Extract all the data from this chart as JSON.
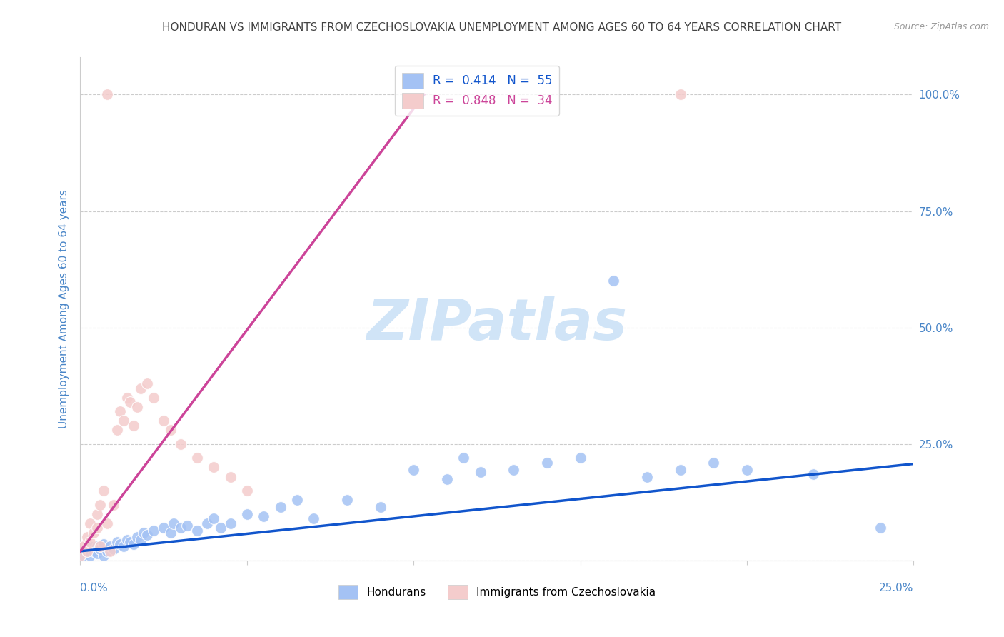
{
  "title": "HONDURAN VS IMMIGRANTS FROM CZECHOSLOVAKIA UNEMPLOYMENT AMONG AGES 60 TO 64 YEARS CORRELATION CHART",
  "source": "Source: ZipAtlas.com",
  "ylabel": "Unemployment Among Ages 60 to 64 years",
  "ytick_labels": [
    "",
    "25.0%",
    "50.0%",
    "75.0%",
    "100.0%"
  ],
  "ytick_values": [
    0,
    0.25,
    0.5,
    0.75,
    1.0
  ],
  "xrange": [
    0.0,
    0.25
  ],
  "yrange": [
    0.0,
    1.08
  ],
  "R_blue": 0.414,
  "N_blue": 55,
  "R_pink": 0.848,
  "N_pink": 34,
  "blue_color": "#a4c2f4",
  "pink_color": "#f4cccc",
  "blue_line_color": "#1155cc",
  "pink_line_color": "#cc4499",
  "title_color": "#434343",
  "source_color": "#999999",
  "tick_color": "#4a86c8",
  "watermark_color": "#d0e4f7",
  "grid_color": "#cccccc",
  "blue_scatter_x": [
    0.001,
    0.002,
    0.003,
    0.003,
    0.004,
    0.005,
    0.005,
    0.006,
    0.007,
    0.007,
    0.008,
    0.009,
    0.01,
    0.011,
    0.012,
    0.013,
    0.014,
    0.015,
    0.016,
    0.017,
    0.018,
    0.019,
    0.02,
    0.022,
    0.025,
    0.027,
    0.028,
    0.03,
    0.032,
    0.035,
    0.038,
    0.04,
    0.042,
    0.045,
    0.05,
    0.055,
    0.06,
    0.065,
    0.07,
    0.08,
    0.09,
    0.1,
    0.11,
    0.115,
    0.12,
    0.13,
    0.14,
    0.15,
    0.16,
    0.17,
    0.18,
    0.19,
    0.2,
    0.22,
    0.24
  ],
  "blue_scatter_y": [
    0.01,
    0.02,
    0.01,
    0.03,
    0.02,
    0.015,
    0.03,
    0.025,
    0.01,
    0.035,
    0.02,
    0.03,
    0.025,
    0.04,
    0.035,
    0.03,
    0.045,
    0.04,
    0.035,
    0.05,
    0.045,
    0.06,
    0.055,
    0.065,
    0.07,
    0.06,
    0.08,
    0.07,
    0.075,
    0.065,
    0.08,
    0.09,
    0.07,
    0.08,
    0.1,
    0.095,
    0.115,
    0.13,
    0.09,
    0.13,
    0.115,
    0.195,
    0.175,
    0.22,
    0.19,
    0.195,
    0.21,
    0.22,
    0.6,
    0.18,
    0.195,
    0.21,
    0.195,
    0.185,
    0.07
  ],
  "pink_scatter_x": [
    0.0,
    0.001,
    0.002,
    0.002,
    0.003,
    0.003,
    0.004,
    0.005,
    0.005,
    0.006,
    0.006,
    0.007,
    0.008,
    0.009,
    0.01,
    0.011,
    0.012,
    0.013,
    0.014,
    0.015,
    0.016,
    0.017,
    0.018,
    0.02,
    0.022,
    0.025,
    0.027,
    0.03,
    0.035,
    0.04,
    0.045,
    0.05,
    0.008,
    0.18
  ],
  "pink_scatter_y": [
    0.01,
    0.03,
    0.02,
    0.05,
    0.04,
    0.08,
    0.06,
    0.1,
    0.07,
    0.12,
    0.03,
    0.15,
    0.08,
    0.02,
    0.12,
    0.28,
    0.32,
    0.3,
    0.35,
    0.34,
    0.29,
    0.33,
    0.37,
    0.38,
    0.35,
    0.3,
    0.28,
    0.25,
    0.22,
    0.2,
    0.18,
    0.15,
    1.0,
    1.0
  ],
  "pink_line_slope": 9.5,
  "pink_line_intercept": 0.02,
  "blue_line_slope": 0.75,
  "blue_line_intercept": 0.02
}
